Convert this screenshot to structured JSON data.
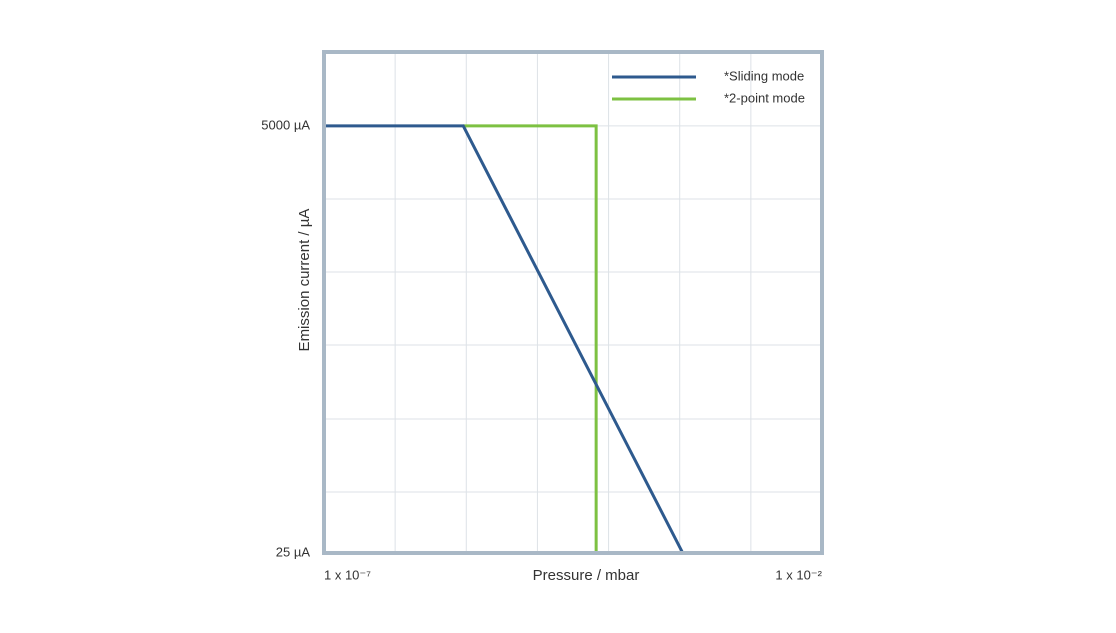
{
  "chart_data": {
    "type": "line",
    "xlabel": "Pressure / mbar",
    "ylabel": "Emission current / µA",
    "xscale": "log",
    "yscale": "log",
    "xlim": [
      1e-07,
      0.01
    ],
    "ylim": [
      25,
      12500
    ],
    "xticks": [
      {
        "value": 1e-07,
        "label": "1 x 10⁻⁷"
      },
      {
        "value": 0.01,
        "label": "1 x 10⁻²"
      }
    ],
    "yticks": [
      {
        "value": 5000,
        "label": "5000 µA"
      },
      {
        "value": 25,
        "label": "25 µA"
      }
    ],
    "grid": true,
    "legend": "upper right",
    "series": [
      {
        "name": "*Sliding mode",
        "color": "#2e5a8e",
        "x": [
          1e-07,
          2.5e-06,
          0.0004,
          0.01
        ],
        "values": [
          5000,
          5000,
          25,
          25
        ]
      },
      {
        "name": "*2-point mode",
        "color": "#7dc142",
        "x": [
          2.5e-06,
          5.4e-05,
          5.4e-05,
          0.01
        ],
        "values": [
          5000,
          5000,
          25,
          25
        ]
      }
    ]
  }
}
